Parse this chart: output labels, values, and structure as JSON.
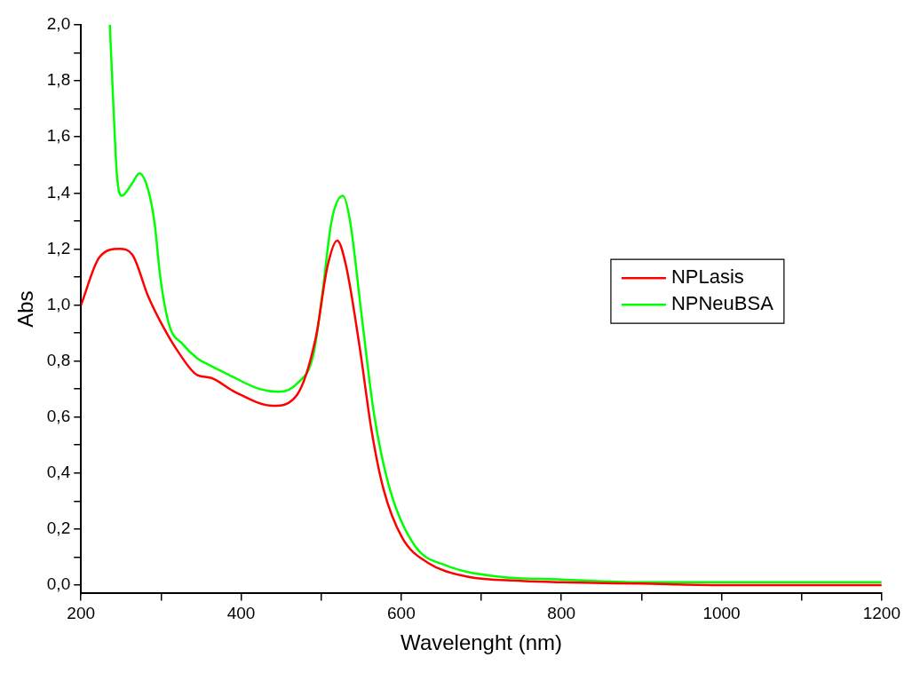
{
  "chart_data": {
    "type": "line",
    "xlabel": "Wavelenght (nm)",
    "ylabel": "Abs",
    "legend": "right",
    "grid": false,
    "marker": "none",
    "line_style": "solid",
    "xlim": [
      200,
      1200
    ],
    "xticks": [
      200,
      {
        "value": 300,
        "label": null
      },
      400,
      {
        "value": 500,
        "label": null
      },
      600,
      {
        "value": 700,
        "label": null
      },
      800,
      {
        "value": 900,
        "label": null
      },
      1000,
      {
        "value": 1100,
        "label": null
      },
      1200
    ],
    "ylim": [
      -0.03,
      2.0
    ],
    "yticks": [
      {
        "value": 0,
        "label": "0,0"
      },
      {
        "value": 0.1,
        "label": null
      },
      {
        "value": 0.2,
        "label": "0,2"
      },
      {
        "value": 0.3,
        "label": null
      },
      {
        "value": 0.4,
        "label": "0,4"
      },
      {
        "value": 0.5,
        "label": null
      },
      {
        "value": 0.6,
        "label": "0,6"
      },
      {
        "value": 0.7,
        "label": null
      },
      {
        "value": 0.8,
        "label": "0,8"
      },
      {
        "value": 0.9,
        "label": null
      },
      {
        "value": 1.0,
        "label": "1,0"
      },
      {
        "value": 1.1,
        "label": null
      },
      {
        "value": 1.2,
        "label": "1,2"
      },
      {
        "value": 1.3,
        "label": null
      },
      {
        "value": 1.4,
        "label": "1,4"
      },
      {
        "value": 1.5,
        "label": null
      },
      {
        "value": 1.6,
        "label": "1,6"
      },
      {
        "value": 1.7,
        "label": null
      },
      {
        "value": 1.8,
        "label": "1,8"
      },
      {
        "value": 1.9,
        "label": null
      },
      {
        "value": 2.0,
        "label": "2,0"
      }
    ],
    "series": [
      {
        "name": "NPLasis",
        "color": "#ff0000",
        "x": [
          200,
          223,
          248,
          264,
          284,
          303,
          322,
          345,
          362,
          392,
          440,
          470,
          493,
          508,
          520,
          531,
          548,
          563,
          578,
          601,
          633,
          683,
          750,
          800,
          900,
          1000,
          1100,
          1200
        ],
        "values": [
          1.0,
          1.17,
          1.2,
          1.18,
          1.03,
          0.92,
          0.83,
          0.75,
          0.74,
          0.69,
          0.64,
          0.68,
          0.88,
          1.14,
          1.23,
          1.14,
          0.85,
          0.55,
          0.34,
          0.17,
          0.08,
          0.03,
          0.015,
          0.01,
          0.005,
          0.0,
          0.0,
          0.0
        ]
      },
      {
        "name": "NPNeuBSA",
        "color": "#00ff00",
        "x": [
          236,
          240,
          245,
          251,
          263,
          273,
          284,
          292,
          299,
          310,
          327,
          345,
          357,
          385,
          423,
          447,
          470,
          490,
          501,
          513,
          527,
          536,
          551,
          566,
          586,
          617,
          656,
          722,
          800,
          900,
          1000,
          1100,
          1200
        ],
        "values": [
          2.0,
          1.74,
          1.46,
          1.39,
          1.43,
          1.47,
          1.41,
          1.29,
          1.1,
          0.93,
          0.86,
          0.81,
          0.79,
          0.75,
          0.7,
          0.69,
          0.72,
          0.82,
          1.03,
          1.3,
          1.39,
          1.3,
          0.95,
          0.61,
          0.34,
          0.14,
          0.07,
          0.03,
          0.02,
          0.01,
          0.01,
          0.01,
          0.01
        ]
      }
    ]
  }
}
